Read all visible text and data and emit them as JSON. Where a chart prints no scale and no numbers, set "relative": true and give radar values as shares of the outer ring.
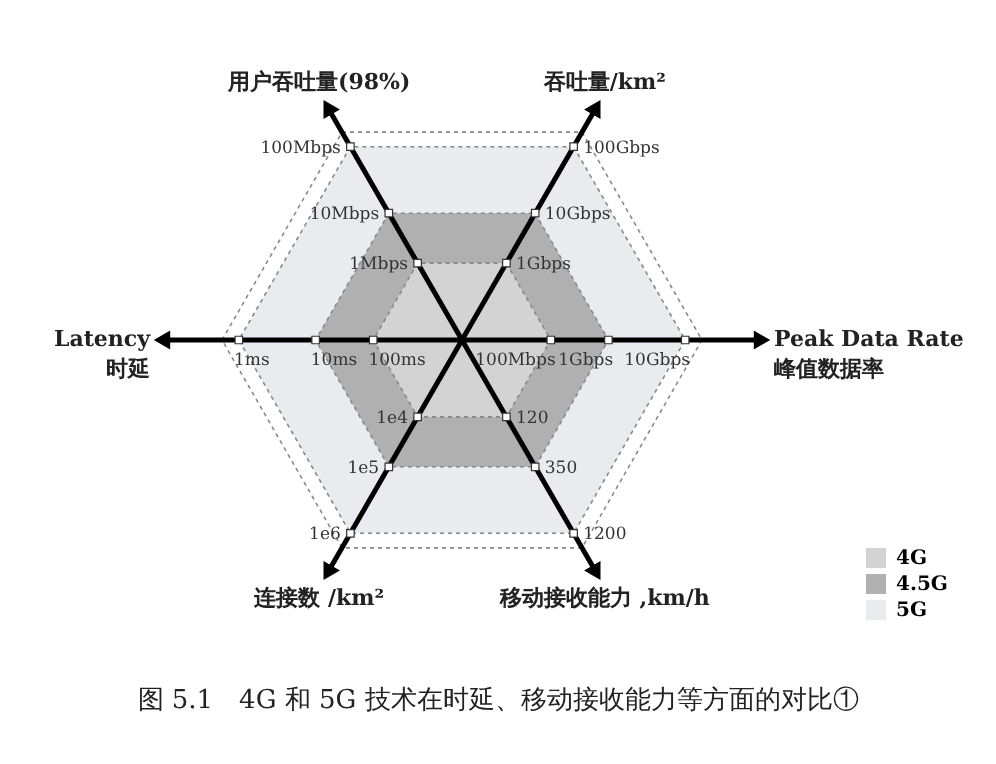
{
  "chart_data": {
    "type": "radar",
    "title": "图 5.1　4G 和 5G 技术在时延、移动接收能力等方面的对比①",
    "categories": [
      "吞吐量/km²",
      "Peak Data Rate\n峰值数据率",
      "移动接收能力 ,km/h",
      "连接数 /km²",
      "Latency\n时延",
      "用户吞吐量(98%)"
    ],
    "relative": true,
    "grid": true,
    "legend": "bottom right",
    "series": [
      {
        "name": "5G",
        "color": "#e9ebee",
        "values": [
          0.93,
          0.93,
          0.93,
          0.93,
          0.93,
          0.93
        ]
      },
      {
        "name": "4.5G",
        "color": "#b0b0b0",
        "values": [
          0.61,
          0.61,
          0.61,
          0.61,
          0.61,
          0.61
        ]
      },
      {
        "name": "4G",
        "color": "#d3d3d3",
        "values": [
          0.37,
          0.37,
          0.37,
          0.37,
          0.37,
          0.37
        ]
      }
    ],
    "annotations": [
      {
        "text": "100Gbps",
        "x": "吞吐量/km²"
      },
      {
        "text": "10Gbps",
        "x": "吞吐量/km²"
      },
      {
        "text": "1Gbps",
        "x": "吞吐量/km²"
      },
      {
        "text": "10Gbps",
        "x": "Peak Data Rate\n峰值数据率"
      },
      {
        "text": "1Gbps",
        "x": "Peak Data Rate\n峰值数据率"
      },
      {
        "text": "100Mbps",
        "x": "Peak Data Rate\n峰值数据率"
      },
      {
        "text": "1200",
        "x": "移动接收能力 ,km/h"
      },
      {
        "text": "350",
        "x": "移动接收能力 ,km/h"
      },
      {
        "text": "120",
        "x": "移动接收能力 ,km/h"
      },
      {
        "text": "1e6",
        "x": "连接数 /km²"
      },
      {
        "text": "1e5",
        "x": "连接数 /km²"
      },
      {
        "text": "1e4",
        "x": "连接数 /km²"
      },
      {
        "text": "1ms",
        "x": "Latency\n时延"
      },
      {
        "text": "10ms",
        "x": "Latency\n时延"
      },
      {
        "text": "100ms",
        "x": "Latency\n时延"
      },
      {
        "text": "100Mbps",
        "x": "用户吞吐量(98%)"
      },
      {
        "text": "10Mbps",
        "x": "用户吞吐量(98%)"
      },
      {
        "text": "1Mbps",
        "x": "用户吞吐量(98%)"
      }
    ]
  }
}
